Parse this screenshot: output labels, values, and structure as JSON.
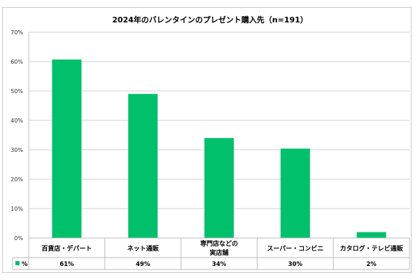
{
  "chart_data": {
    "type": "bar",
    "title": "2024年のバレンタインのプレゼント購入先（n=191）",
    "categories": [
      [
        "百貨店・デパート"
      ],
      [
        "ネット通販"
      ],
      [
        "専門店などの",
        "実店舗"
      ],
      [
        "スーパー・コンビニ"
      ],
      [
        "カタログ・テレビ通販"
      ]
    ],
    "series": [
      {
        "name": "%",
        "values": [
          60.7,
          49.0,
          34.0,
          30.4,
          2.0
        ],
        "labels": [
          "61%",
          "49%",
          "34%",
          "30%",
          "2%"
        ],
        "color": "#00c06b"
      }
    ],
    "yticks": [
      "0%",
      "10%",
      "20%",
      "30%",
      "40%",
      "50%",
      "60%",
      "70%"
    ],
    "ylim": [
      0,
      70
    ],
    "xlabel": "",
    "ylabel": "",
    "grid": true,
    "legend": "data-table"
  }
}
